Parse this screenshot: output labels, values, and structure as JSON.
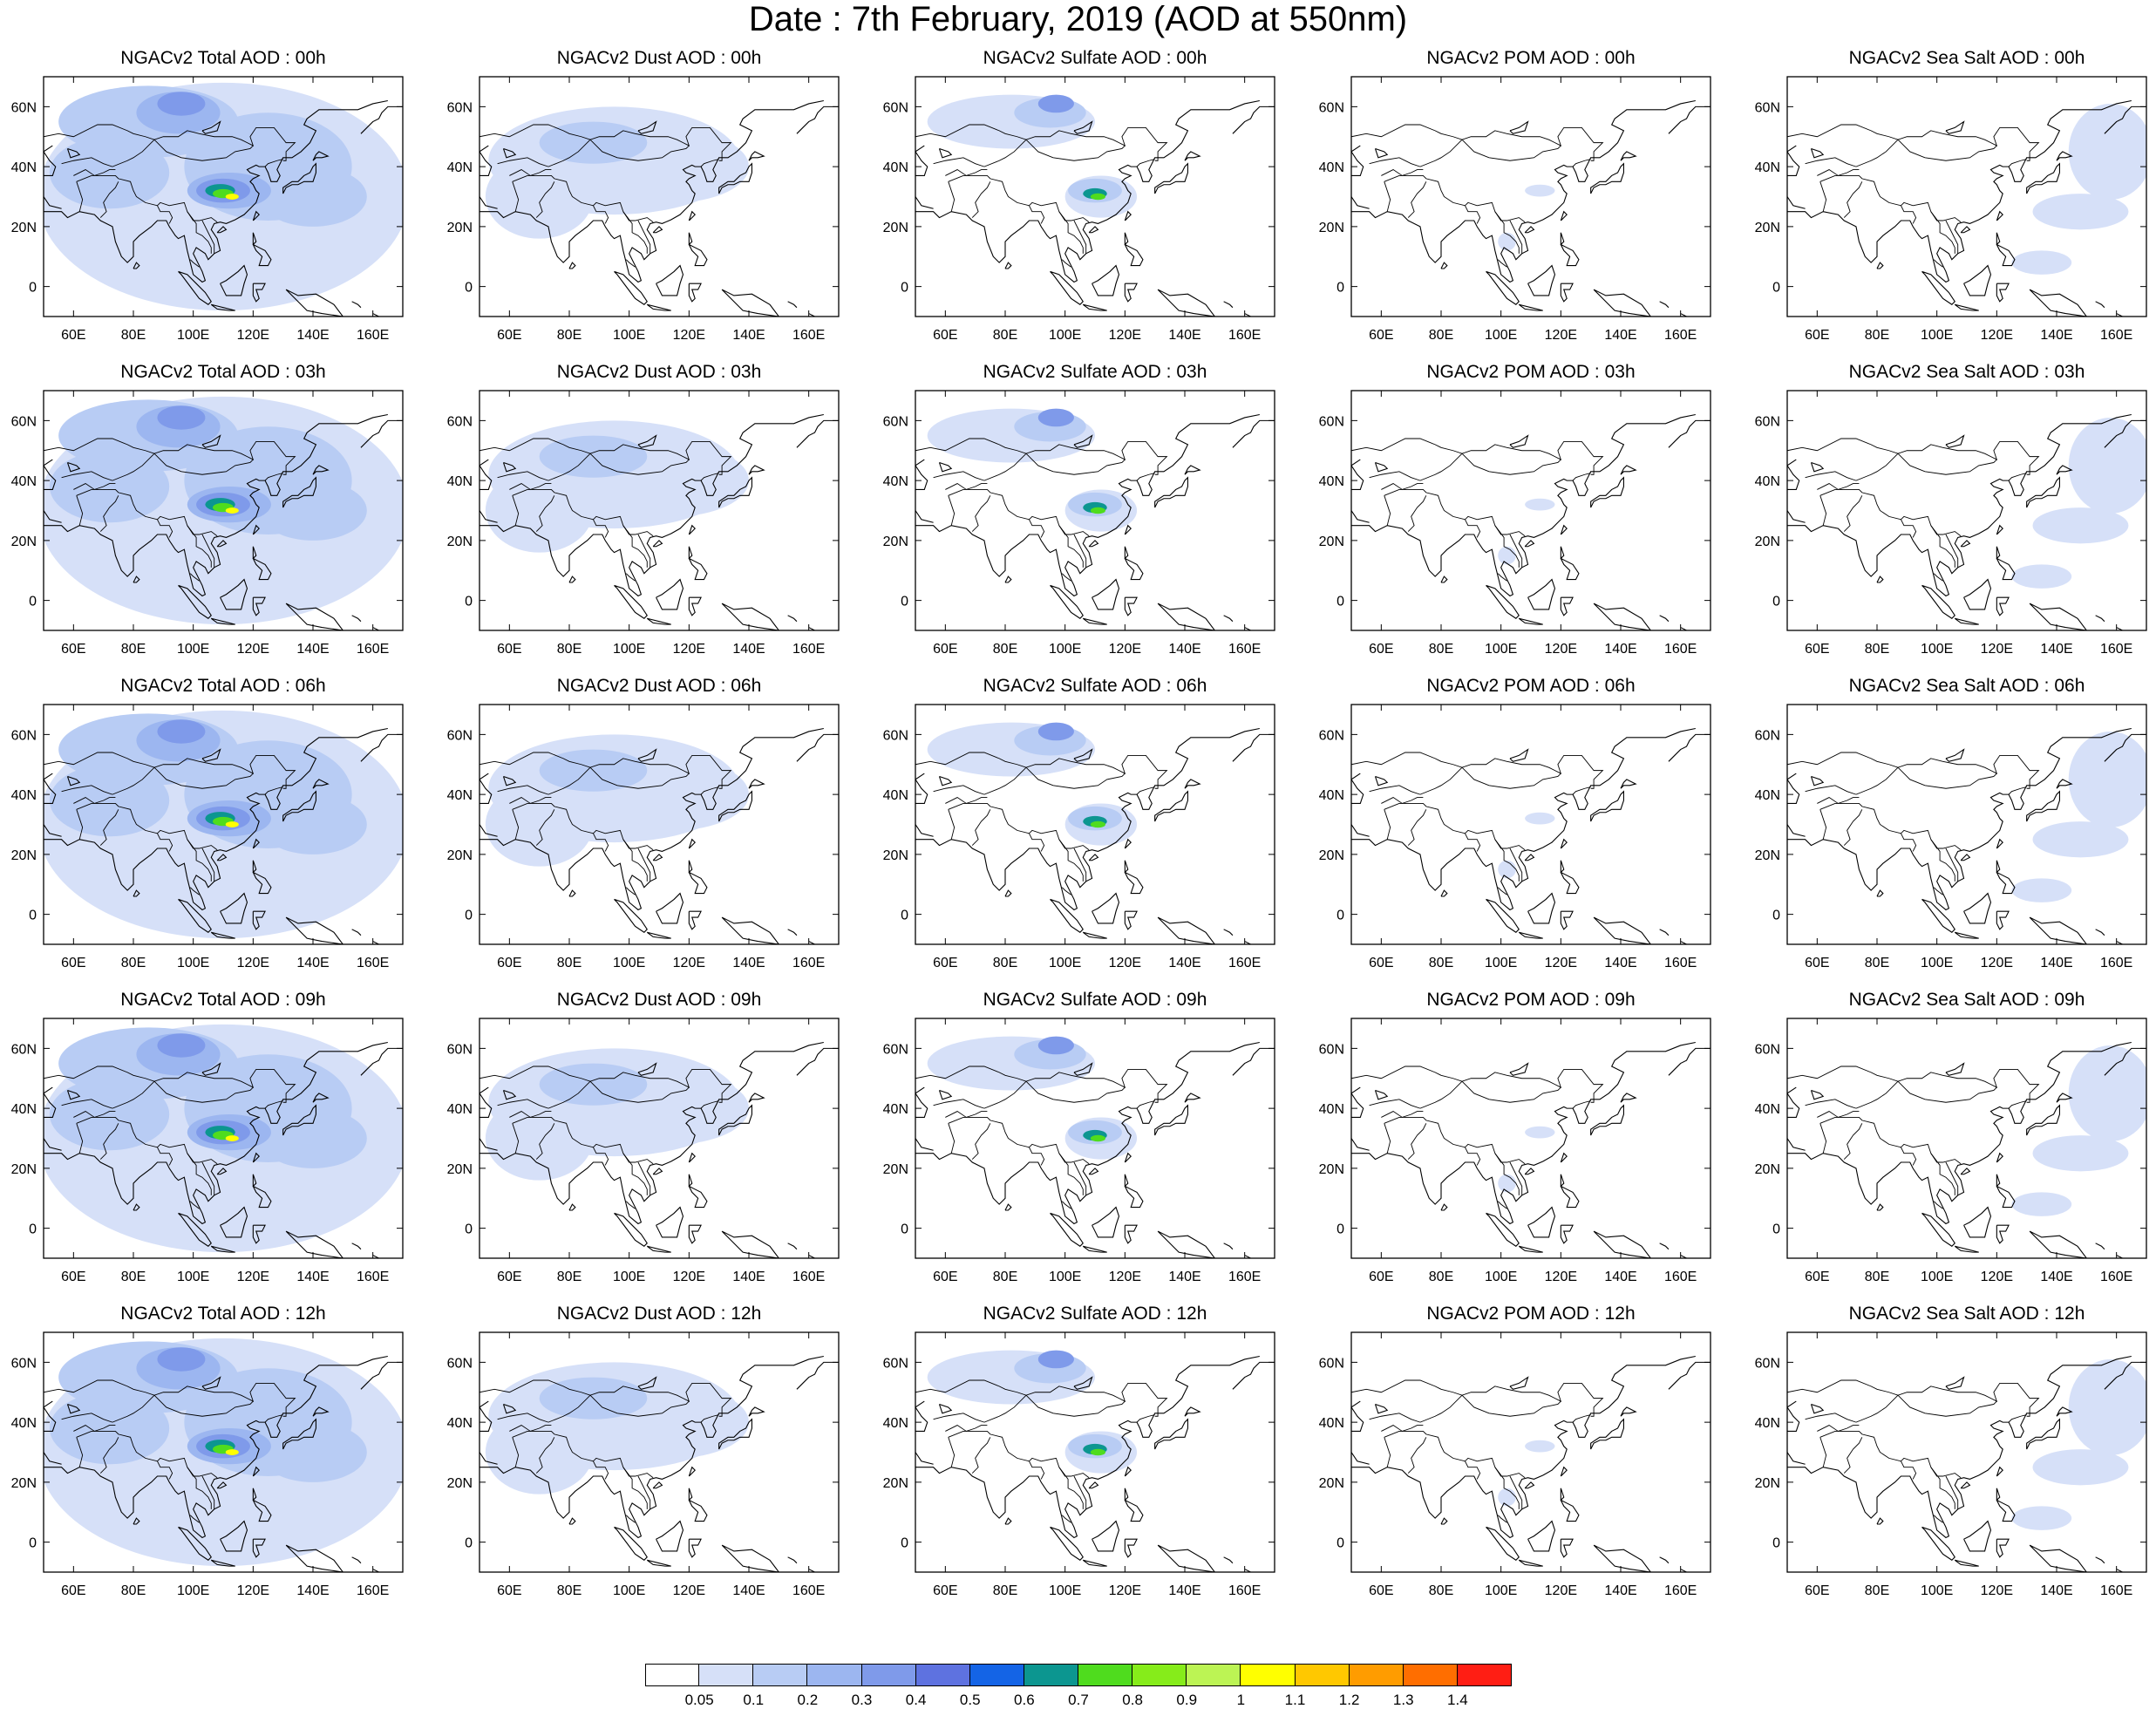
{
  "title": "Date : 7th February, 2019 (AOD at 550nm)",
  "axes": {
    "x_ticks": [
      "60E",
      "80E",
      "100E",
      "120E",
      "140E",
      "160E"
    ],
    "x_values": [
      60,
      80,
      100,
      120,
      140,
      160
    ],
    "y_ticks": [
      "60N",
      "40N",
      "20N",
      "0"
    ],
    "y_values": [
      60,
      40,
      20,
      0
    ],
    "lon_range": [
      50,
      170
    ],
    "lat_range": [
      -10,
      70
    ]
  },
  "panels": [
    {
      "title": "NGACv2 Total AOD : 00h",
      "species": "total"
    },
    {
      "title": "NGACv2 Dust AOD : 00h",
      "species": "dust"
    },
    {
      "title": "NGACv2 Sulfate AOD : 00h",
      "species": "sulfate"
    },
    {
      "title": "NGACv2 POM AOD : 00h",
      "species": "pom"
    },
    {
      "title": "NGACv2 Sea Salt AOD : 00h",
      "species": "seasalt"
    },
    {
      "title": "NGACv2 Total AOD : 03h",
      "species": "total"
    },
    {
      "title": "NGACv2 Dust AOD : 03h",
      "species": "dust"
    },
    {
      "title": "NGACv2 Sulfate AOD : 03h",
      "species": "sulfate"
    },
    {
      "title": "NGACv2 POM AOD : 03h",
      "species": "pom"
    },
    {
      "title": "NGACv2 Sea Salt AOD : 03h",
      "species": "seasalt"
    },
    {
      "title": "NGACv2 Total AOD : 06h",
      "species": "total"
    },
    {
      "title": "NGACv2 Dust AOD : 06h",
      "species": "dust"
    },
    {
      "title": "NGACv2 Sulfate AOD : 06h",
      "species": "sulfate"
    },
    {
      "title": "NGACv2 POM AOD : 06h",
      "species": "pom"
    },
    {
      "title": "NGACv2 Sea Salt AOD : 06h",
      "species": "seasalt"
    },
    {
      "title": "NGACv2 Total AOD : 09h",
      "species": "total"
    },
    {
      "title": "NGACv2 Dust AOD : 09h",
      "species": "dust"
    },
    {
      "title": "NGACv2 Sulfate AOD : 09h",
      "species": "sulfate"
    },
    {
      "title": "NGACv2 POM AOD : 09h",
      "species": "pom"
    },
    {
      "title": "NGACv2 Sea Salt  AOD : 09h",
      "species": "seasalt"
    },
    {
      "title": "NGACv2 Total AOD  : 12h",
      "species": "total"
    },
    {
      "title": "NGACv2 Dust AOD : 12h",
      "species": "dust"
    },
    {
      "title": "NGACv2 Sulfate AOD : 12h",
      "species": "sulfate"
    },
    {
      "title": "NGACv2 POM  AOD : 12h",
      "species": "pom"
    },
    {
      "title": "NGACv2 Sea Salt  AOD : 12h",
      "species": "seasalt"
    }
  ],
  "colorbar": {
    "labels": [
      "0.05",
      "0.1",
      "0.2",
      "0.3",
      "0.4",
      "0.5",
      "0.6",
      "0.7",
      "0.8",
      "0.9",
      "1",
      "1.1",
      "1.2",
      "1.3",
      "1.4"
    ],
    "colors": [
      "#ffffff",
      "#d6e0f8",
      "#b8ccf4",
      "#9cb6f0",
      "#7f9aea",
      "#5e72e0",
      "#1464e6",
      "#0c9690",
      "#4fdc1e",
      "#86ec1a",
      "#bcf454",
      "#ffff00",
      "#ffc800",
      "#ff9c00",
      "#ff6e00",
      "#ff1e14"
    ]
  },
  "map_colors": {
    "light": "#d6e0f8",
    "light2": "#b8ccf4",
    "mid": "#9cb6f0",
    "mid2": "#7f9aea",
    "dark": "#5e72e0",
    "teal": "#0c9690",
    "green": "#4fdc1e",
    "yellow": "#ffff00",
    "orange": "#ffc800",
    "coast": "#000000"
  }
}
